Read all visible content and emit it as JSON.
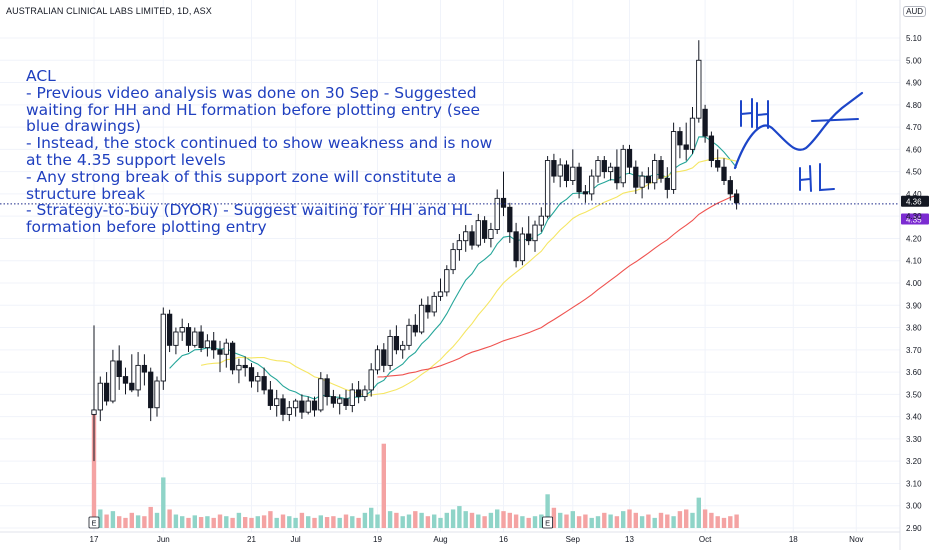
{
  "header": {
    "title": "AUSTRALIAN CLINICAL LABS LIMITED, 1D, ASX",
    "currency": "AUD"
  },
  "annotation": {
    "lines": [
      "ACL",
      "- Previous video analysis was done on 30 Sep - Suggested",
      "waiting for HH and HL formation before plotting entry (see",
      "blue drawings)",
      "- Instead, the stock continued to show weakness and is now",
      "at the 4.35 support levels",
      "- Any strong break of this support zone will constitute a",
      "structure break",
      "- Strategy-to-buy (DYOR) - Suggest waiting for HH and HL",
      "formation before plotting entry"
    ],
    "hh_label": "HH",
    "hl_label": "HL"
  },
  "chart_data": {
    "type": "candlestick",
    "ylim": [
      2.9,
      5.13
    ],
    "y_ticks": [
      "5.10",
      "5.00",
      "4.90",
      "4.80",
      "4.70",
      "4.60",
      "4.50",
      "4.40",
      "4.30",
      "4.20",
      "4.10",
      "4.00",
      "3.90",
      "3.80",
      "3.70",
      "3.60",
      "3.50",
      "3.40",
      "3.30",
      "3.20",
      "3.10",
      "3.00",
      "2.90"
    ],
    "x_ticks": [
      {
        "label": "17",
        "i": 0
      },
      {
        "label": "Jun",
        "i": 11
      },
      {
        "label": "21",
        "i": 25
      },
      {
        "label": "Jul",
        "i": 32
      },
      {
        "label": "19",
        "i": 45
      },
      {
        "label": "Aug",
        "i": 55
      },
      {
        "label": "16",
        "i": 65
      },
      {
        "label": "Sep",
        "i": 76
      },
      {
        "label": "13",
        "i": 85
      },
      {
        "label": "Oct",
        "i": 97
      },
      {
        "label": "18",
        "i": 111
      },
      {
        "label": "Nov",
        "i": 121
      }
    ],
    "last_price": "4.36",
    "support_price": "4.35",
    "support_level": 4.355,
    "earnings_markers": [
      {
        "label": "E",
        "i": 0
      },
      {
        "label": "E",
        "i": 72
      }
    ],
    "ohlc": [
      [
        3.41,
        3.81,
        3.2,
        3.43
      ],
      [
        3.43,
        3.58,
        3.38,
        3.55
      ],
      [
        3.55,
        3.6,
        3.45,
        3.47
      ],
      [
        3.47,
        3.7,
        3.46,
        3.65
      ],
      [
        3.65,
        3.72,
        3.52,
        3.58
      ],
      [
        3.58,
        3.62,
        3.5,
        3.55
      ],
      [
        3.55,
        3.68,
        3.51,
        3.52
      ],
      [
        3.52,
        3.69,
        3.49,
        3.63
      ],
      [
        3.63,
        3.68,
        3.54,
        3.6
      ],
      [
        3.6,
        3.62,
        3.38,
        3.44
      ],
      [
        3.44,
        3.58,
        3.4,
        3.56
      ],
      [
        3.56,
        3.89,
        3.52,
        3.86
      ],
      [
        3.86,
        3.88,
        3.69,
        3.72
      ],
      [
        3.72,
        3.8,
        3.68,
        3.78
      ],
      [
        3.78,
        3.84,
        3.74,
        3.8
      ],
      [
        3.8,
        3.82,
        3.69,
        3.72
      ],
      [
        3.72,
        3.8,
        3.71,
        3.78
      ],
      [
        3.78,
        3.81,
        3.69,
        3.71
      ],
      [
        3.71,
        3.77,
        3.67,
        3.74
      ],
      [
        3.74,
        3.78,
        3.66,
        3.7
      ],
      [
        3.7,
        3.74,
        3.6,
        3.68
      ],
      [
        3.68,
        3.75,
        3.62,
        3.73
      ],
      [
        3.73,
        3.74,
        3.59,
        3.61
      ],
      [
        3.61,
        3.66,
        3.55,
        3.63
      ],
      [
        3.63,
        3.67,
        3.58,
        3.62
      ],
      [
        3.62,
        3.64,
        3.53,
        3.56
      ],
      [
        3.56,
        3.6,
        3.51,
        3.58
      ],
      [
        3.58,
        3.62,
        3.5,
        3.52
      ],
      [
        3.52,
        3.56,
        3.43,
        3.45
      ],
      [
        3.45,
        3.52,
        3.4,
        3.48
      ],
      [
        3.48,
        3.5,
        3.38,
        3.41
      ],
      [
        3.41,
        3.47,
        3.38,
        3.44
      ],
      [
        3.44,
        3.48,
        3.4,
        3.47
      ],
      [
        3.47,
        3.5,
        3.39,
        3.42
      ],
      [
        3.42,
        3.49,
        3.41,
        3.47
      ],
      [
        3.47,
        3.49,
        3.4,
        3.43
      ],
      [
        3.43,
        3.6,
        3.42,
        3.57
      ],
      [
        3.57,
        3.59,
        3.45,
        3.49
      ],
      [
        3.49,
        3.52,
        3.44,
        3.46
      ],
      [
        3.46,
        3.5,
        3.41,
        3.48
      ],
      [
        3.48,
        3.52,
        3.43,
        3.45
      ],
      [
        3.45,
        3.55,
        3.42,
        3.52
      ],
      [
        3.52,
        3.56,
        3.46,
        3.49
      ],
      [
        3.49,
        3.54,
        3.47,
        3.52
      ],
      [
        3.52,
        3.64,
        3.49,
        3.61
      ],
      [
        3.61,
        3.72,
        3.59,
        3.7
      ],
      [
        3.7,
        3.73,
        3.6,
        3.63
      ],
      [
        3.63,
        3.79,
        3.61,
        3.76
      ],
      [
        3.76,
        3.81,
        3.68,
        3.7
      ],
      [
        3.7,
        3.74,
        3.66,
        3.72
      ],
      [
        3.72,
        3.84,
        3.7,
        3.81
      ],
      [
        3.81,
        3.86,
        3.76,
        3.78
      ],
      [
        3.78,
        3.93,
        3.77,
        3.9
      ],
      [
        3.9,
        3.94,
        3.84,
        3.87
      ],
      [
        3.87,
        3.96,
        3.85,
        3.94
      ],
      [
        3.94,
        4.02,
        3.92,
        3.96
      ],
      [
        3.96,
        4.08,
        3.94,
        4.06
      ],
      [
        4.06,
        4.18,
        4.04,
        4.15
      ],
      [
        4.15,
        4.22,
        4.1,
        4.19
      ],
      [
        4.19,
        4.26,
        4.14,
        4.23
      ],
      [
        4.23,
        4.26,
        4.15,
        4.17
      ],
      [
        4.17,
        4.31,
        4.16,
        4.28
      ],
      [
        4.28,
        4.3,
        4.18,
        4.2
      ],
      [
        4.2,
        4.27,
        4.16,
        4.24
      ],
      [
        4.24,
        4.42,
        4.22,
        4.38
      ],
      [
        4.38,
        4.5,
        4.3,
        4.34
      ],
      [
        4.34,
        4.36,
        4.18,
        4.23
      ],
      [
        4.23,
        4.27,
        4.07,
        4.1
      ],
      [
        4.1,
        4.25,
        4.08,
        4.22
      ],
      [
        4.22,
        4.3,
        4.17,
        4.19
      ],
      [
        4.19,
        4.28,
        4.14,
        4.26
      ],
      [
        4.26,
        4.34,
        4.23,
        4.3
      ],
      [
        4.3,
        4.57,
        4.29,
        4.55
      ],
      [
        4.55,
        4.58,
        4.45,
        4.48
      ],
      [
        4.48,
        4.56,
        4.43,
        4.53
      ],
      [
        4.53,
        4.55,
        4.43,
        4.46
      ],
      [
        4.46,
        4.6,
        4.44,
        4.52
      ],
      [
        4.52,
        4.54,
        4.38,
        4.41
      ],
      [
        4.41,
        4.44,
        4.36,
        4.4
      ],
      [
        4.4,
        4.51,
        4.37,
        4.48
      ],
      [
        4.48,
        4.57,
        4.45,
        4.55
      ],
      [
        4.55,
        4.57,
        4.47,
        4.5
      ],
      [
        4.5,
        4.54,
        4.46,
        4.52
      ],
      [
        4.52,
        4.6,
        4.42,
        4.45
      ],
      [
        4.45,
        4.62,
        4.43,
        4.6
      ],
      [
        4.6,
        4.62,
        4.49,
        4.52
      ],
      [
        4.52,
        4.55,
        4.4,
        4.43
      ],
      [
        4.43,
        4.5,
        4.38,
        4.48
      ],
      [
        4.48,
        4.52,
        4.42,
        4.45
      ],
      [
        4.45,
        4.58,
        4.42,
        4.55
      ],
      [
        4.55,
        4.57,
        4.45,
        4.47
      ],
      [
        4.47,
        4.52,
        4.38,
        4.42
      ],
      [
        4.42,
        4.72,
        4.4,
        4.68
      ],
      [
        4.68,
        4.7,
        4.56,
        4.62
      ],
      [
        4.62,
        4.72,
        4.55,
        4.6
      ],
      [
        4.6,
        4.79,
        4.58,
        4.74
      ],
      [
        4.74,
        5.09,
        4.72,
        5.0
      ],
      [
        4.78,
        4.8,
        4.63,
        4.66
      ],
      [
        4.66,
        4.68,
        4.52,
        4.55
      ],
      [
        4.55,
        4.6,
        4.5,
        4.52
      ],
      [
        4.52,
        4.56,
        4.44,
        4.46
      ],
      [
        4.46,
        4.48,
        4.37,
        4.4
      ],
      [
        4.4,
        4.42,
        4.33,
        4.36
      ]
    ],
    "volume": [
      140,
      22,
      16,
      20,
      14,
      12,
      18,
      15,
      14,
      25,
      18,
      60,
      22,
      16,
      14,
      12,
      15,
      13,
      14,
      12,
      16,
      14,
      12,
      18,
      13,
      12,
      14,
      15,
      20,
      12,
      16,
      14,
      12,
      18,
      14,
      12,
      15,
      13,
      14,
      12,
      16,
      14,
      12,
      18,
      24,
      16,
      100,
      20,
      18,
      14,
      16,
      20,
      18,
      14,
      16,
      12,
      18,
      22,
      26,
      20,
      18,
      16,
      14,
      18,
      22,
      20,
      18,
      16,
      14,
      12,
      14,
      16,
      40,
      24,
      18,
      16,
      20,
      14,
      16,
      12,
      14,
      18,
      16,
      14,
      20,
      22,
      18,
      14,
      16,
      12,
      18,
      16,
      14,
      20,
      22,
      18,
      36,
      22,
      18,
      14,
      12,
      14,
      16
    ],
    "volume_up": [
      false,
      true,
      false,
      true,
      false,
      false,
      false,
      true,
      false,
      false,
      true,
      true,
      false,
      true,
      true,
      false,
      true,
      false,
      true,
      false,
      false,
      true,
      false,
      true,
      false,
      false,
      true,
      false,
      false,
      true,
      false,
      true,
      true,
      false,
      true,
      false,
      true,
      false,
      false,
      true,
      false,
      true,
      false,
      true,
      true,
      true,
      false,
      true,
      false,
      true,
      true,
      false,
      true,
      false,
      true,
      true,
      true,
      true,
      true,
      true,
      false,
      true,
      false,
      true,
      true,
      false,
      false,
      false,
      true,
      false,
      true,
      true,
      true,
      false,
      true,
      false,
      true,
      false,
      false,
      true,
      true,
      false,
      true,
      false,
      true,
      false,
      false,
      true,
      false,
      true,
      false,
      false,
      true,
      false,
      false,
      true,
      true,
      false,
      false,
      false,
      false,
      false,
      false
    ]
  }
}
